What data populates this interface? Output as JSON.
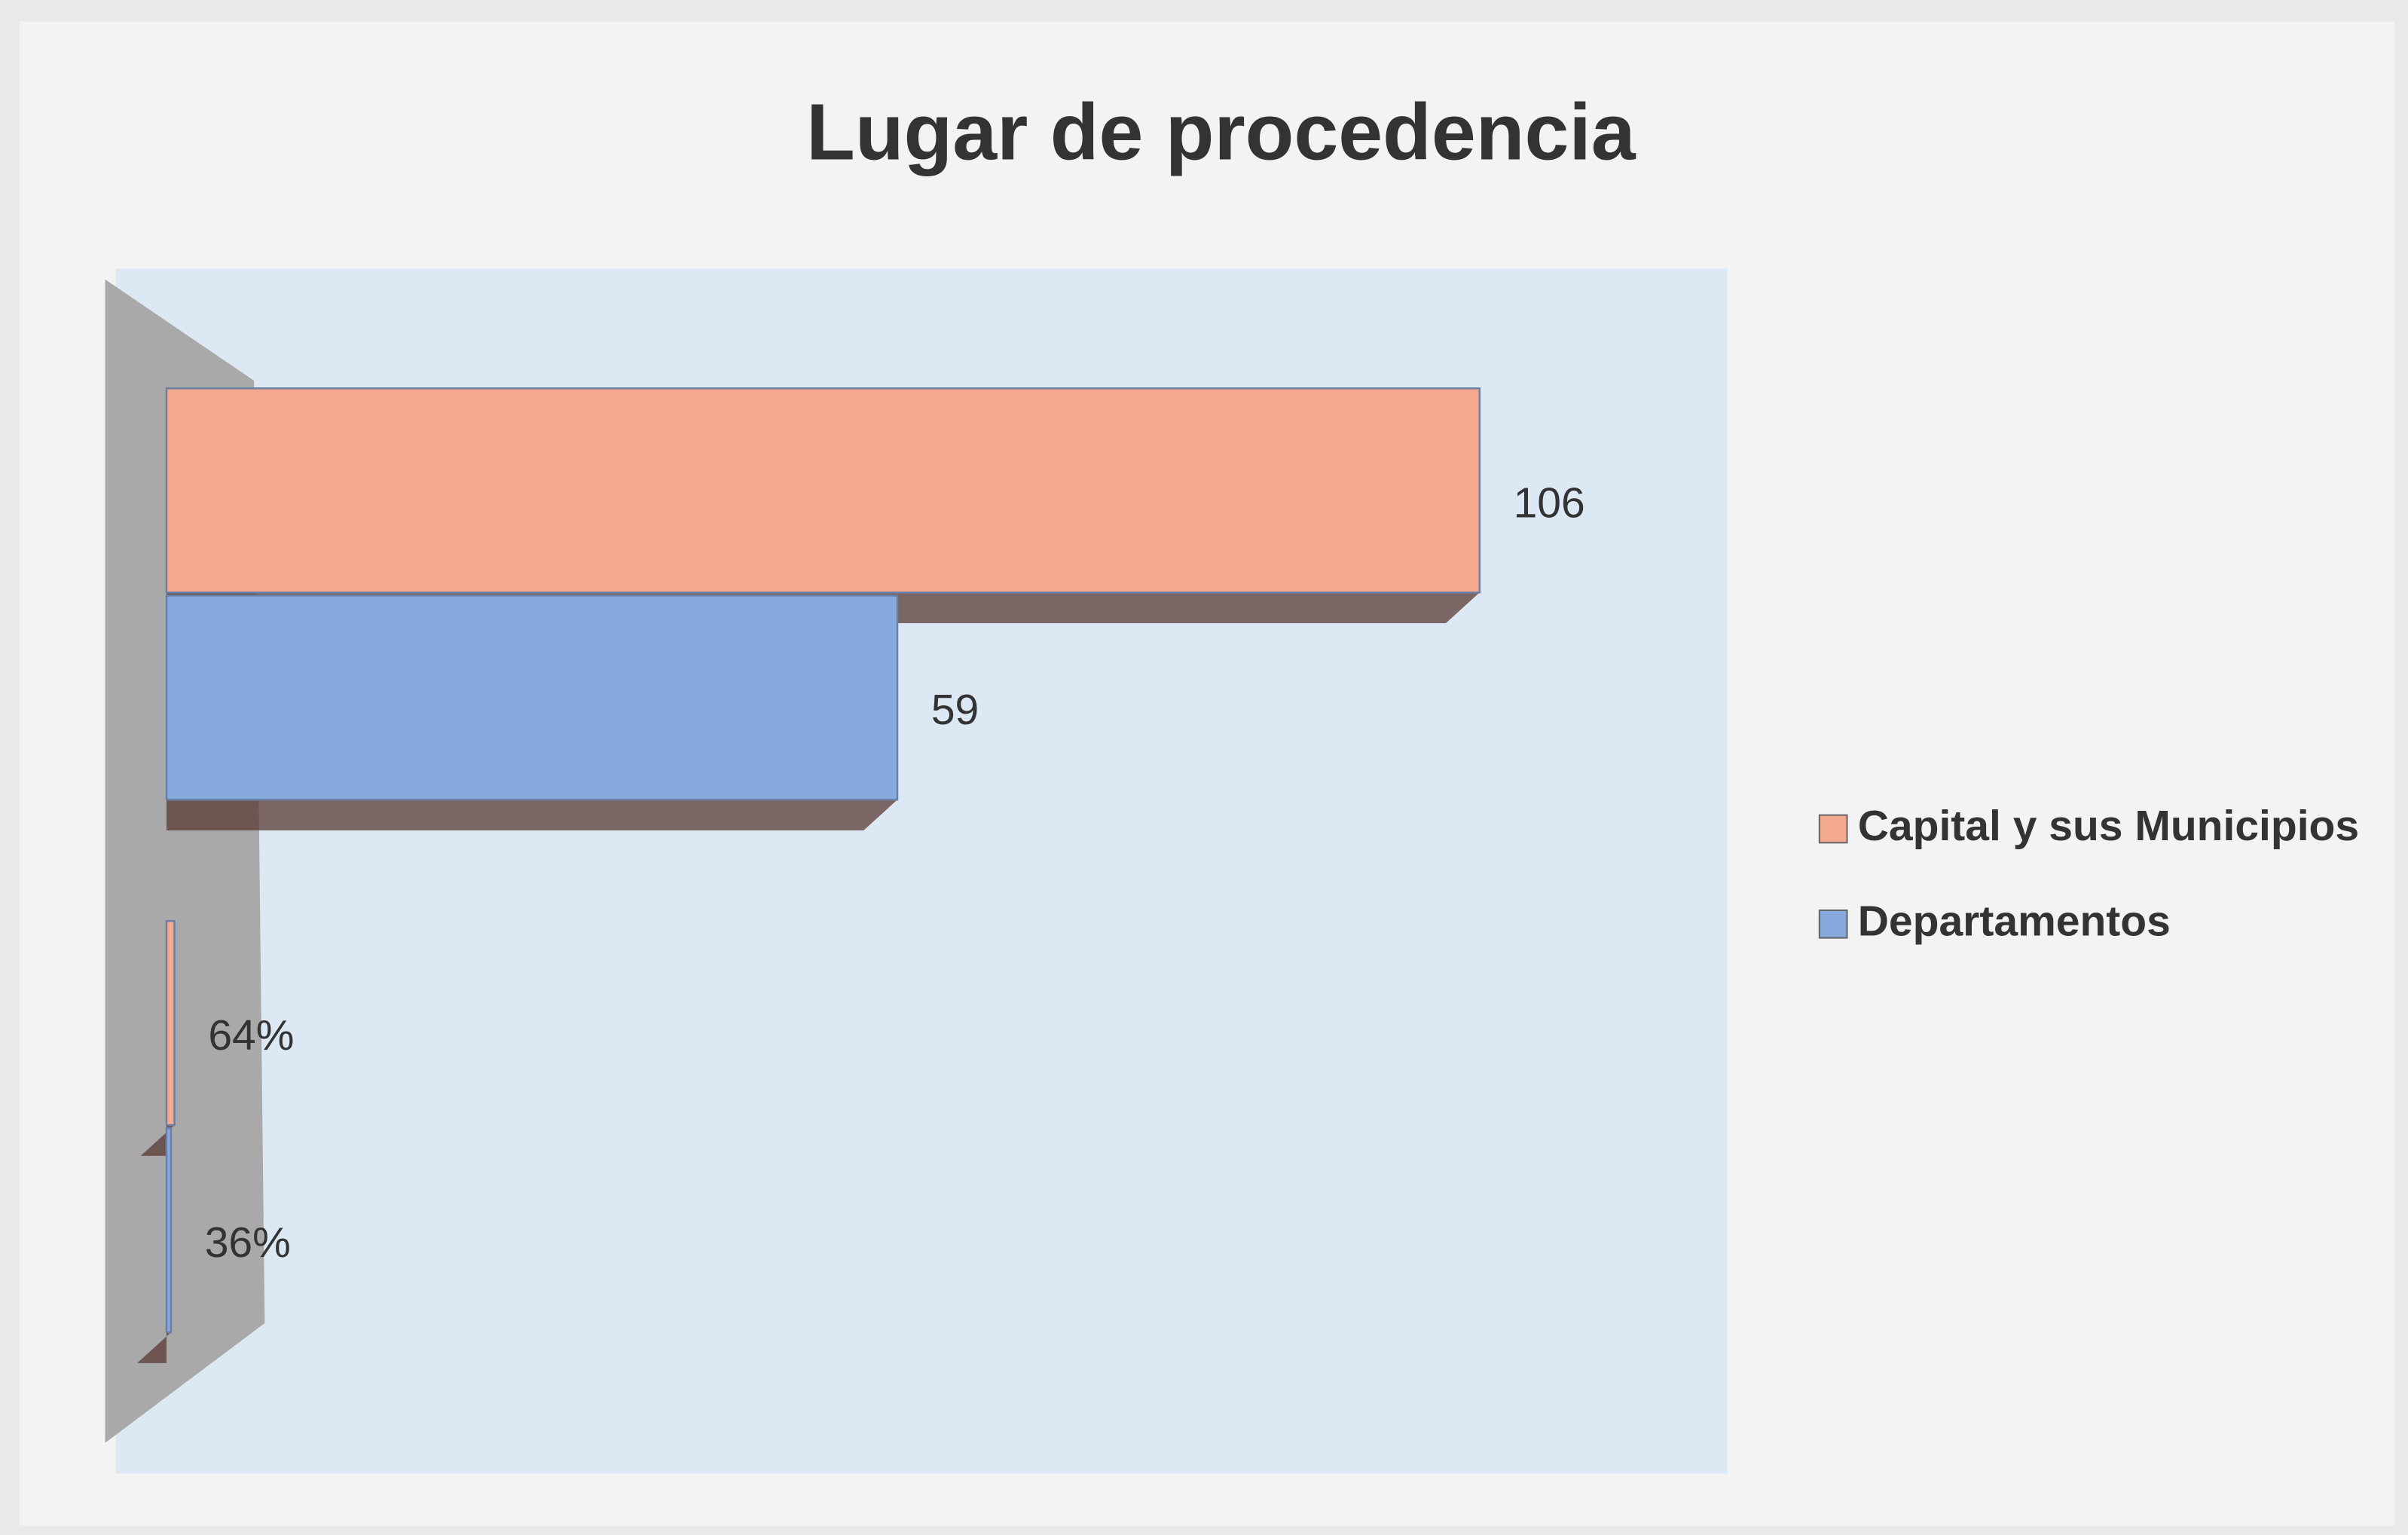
{
  "chart_data": {
    "type": "bar",
    "orientation": "horizontal",
    "title": "Lugar de procedencia",
    "categories": [
      null,
      null
    ],
    "series": [
      {
        "name": "Capital y sus Municipios",
        "color": "#f4a88e",
        "values": [
          106,
          0.64
        ],
        "value_labels": [
          "106",
          "64%"
        ]
      },
      {
        "name": "Departamentos",
        "color": "#86aadd",
        "values": [
          59,
          0.36
        ],
        "value_labels": [
          "59",
          "36%"
        ]
      }
    ],
    "xlim": [
      0,
      126
    ],
    "legend": "right"
  }
}
